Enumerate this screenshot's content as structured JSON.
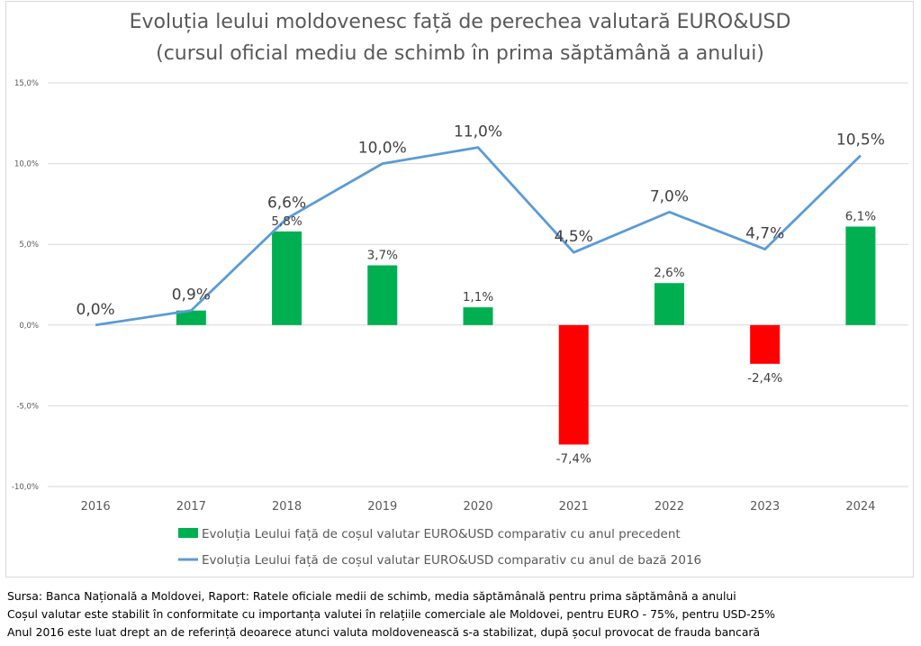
{
  "chart_data": {
    "type": "bar",
    "combo": "bar+line",
    "title": "Evoluția leului moldovenesc față de perechea valutară EURO&USD",
    "subtitle": "(cursul oficial mediu de schimb în prima săptămână a anului)",
    "title_lines": [
      "Evoluția leului moldovenesc față de perechea valutară EURO&USD",
      "(cursul oficial mediu de schimb în prima săptămână a anului)"
    ],
    "xlabel": "",
    "ylabel": "",
    "categories": [
      "2016",
      "2017",
      "2018",
      "2019",
      "2020",
      "2021",
      "2022",
      "2023",
      "2024"
    ],
    "ylim": [
      -10,
      15
    ],
    "yticks": [
      15,
      10,
      5,
      0,
      -5,
      -10
    ],
    "ytick_labels": [
      "15,0%",
      "10,0%",
      "5,0%",
      "0,0%",
      "-5,0%",
      "-10,0%"
    ],
    "grid": true,
    "legend_position": "bottom",
    "series": [
      {
        "name": "Evoluția Leului față de coșul valutar EURO&USD comparativ cu anul precedent",
        "type": "bar",
        "values": [
          null,
          0.9,
          5.8,
          3.7,
          1.1,
          -7.4,
          2.6,
          -2.4,
          6.1
        ],
        "labels": [
          "",
          "",
          "5,8%",
          "3,7%",
          "1,1%",
          "-7,4%",
          "2,6%",
          "-2,4%",
          "6,1%"
        ],
        "color_positive": "#00b050",
        "color_negative": "#ff0000"
      },
      {
        "name": "Evoluția Leului față de coșul valutar EURO&USD comparativ cu anul de bază 2016",
        "type": "line",
        "values": [
          0.0,
          0.9,
          6.6,
          10.0,
          11.0,
          4.5,
          7.0,
          4.7,
          10.5
        ],
        "labels": [
          "0,0%",
          "0,9%",
          "6,6%",
          "10,0%",
          "11,0%",
          "4,5%",
          "7,0%",
          "4,7%",
          "10,5%"
        ],
        "color": "#5b9bd5"
      }
    ]
  },
  "footer": {
    "lines": [
      "Sursa: Banca Națională a Moldovei, Raport: Ratele oficiale medii de schimb, media săptămânală pentru prima săptămână a anului",
      "Coșul valutar este stabilit în conformitate cu importanța valutei în relațiile comerciale ale Moldovei, pentru EURO - 75%, pentru USD-25%",
      "Anul 2016 este luat drept an de referință deoarece atunci valuta moldovenească  s-a stabilizat, după șocul provocat de frauda bancară"
    ]
  }
}
